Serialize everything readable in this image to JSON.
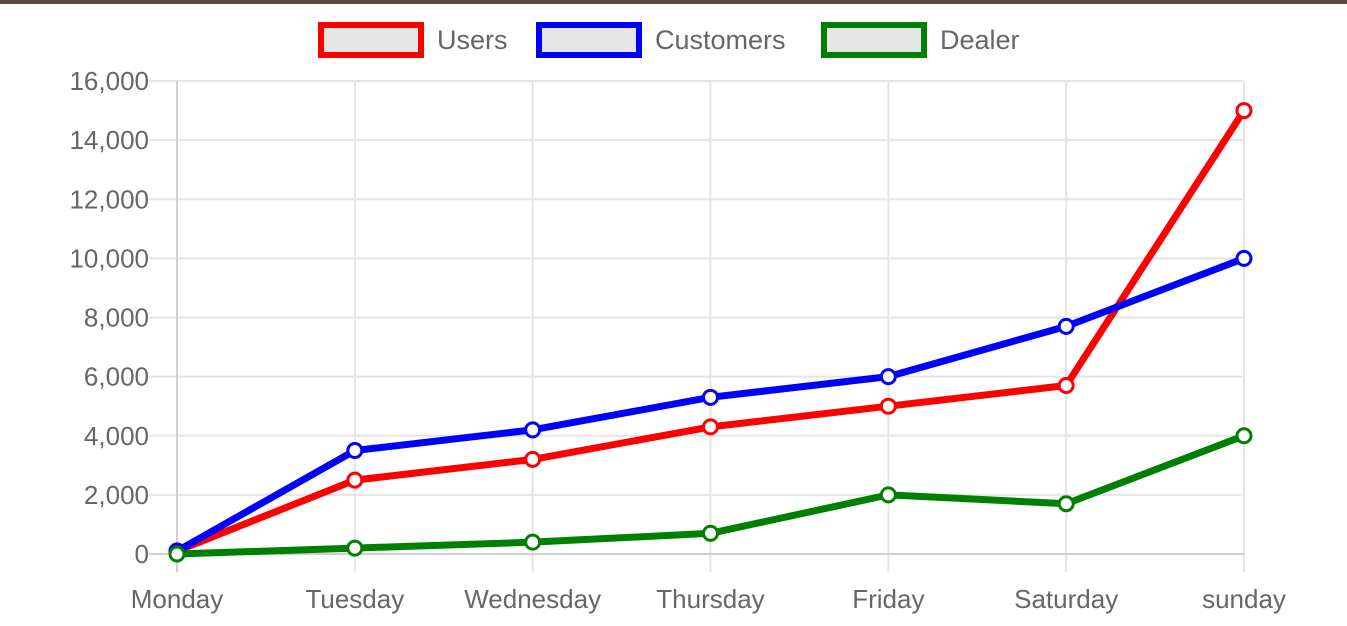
{
  "chart_data": {
    "type": "line",
    "categories": [
      "Monday",
      "Tuesday",
      "Wednesday",
      "Thursday",
      "Friday",
      "Saturday",
      "sunday"
    ],
    "series": [
      {
        "name": "Users",
        "color": "#ff0000",
        "values": [
          100,
          2500,
          3200,
          4300,
          5000,
          5700,
          15000
        ]
      },
      {
        "name": "Customers",
        "color": "#0000ff",
        "values": [
          100,
          3500,
          4200,
          5300,
          6000,
          7700,
          10000
        ]
      },
      {
        "name": "Dealer",
        "color": "#008000",
        "values": [
          0,
          200,
          400,
          700,
          2000,
          1700,
          4000
        ]
      }
    ],
    "ylim": [
      0,
      16000
    ],
    "yticks": [
      "0",
      "2,000",
      "4,000",
      "6,000",
      "8,000",
      "10,000",
      "12,000",
      "14,000",
      "16,000"
    ],
    "ytick_values": [
      0,
      2000,
      4000,
      6000,
      8000,
      10000,
      12000,
      14000,
      16000
    ],
    "grid": true,
    "legend_position": "top",
    "legend_box_fill": "#e6e6e6",
    "grid_color": "#e5e5e5",
    "axis_text_color": "#666666"
  }
}
